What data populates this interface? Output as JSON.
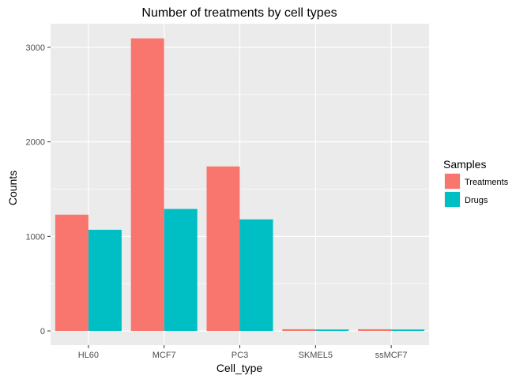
{
  "chart_data": {
    "type": "bar",
    "title": "Number of treatments by cell types",
    "xlabel": "Cell_type",
    "ylabel": "Counts",
    "categories": [
      "HL60",
      "MCF7",
      "PC3",
      "SKMEL5",
      "ssMCF7"
    ],
    "series": [
      {
        "name": "Treatments",
        "color": "#F8766D",
        "values": [
          1230,
          3095,
          1740,
          18,
          18
        ]
      },
      {
        "name": "Drugs",
        "color": "#00BFC4",
        "values": [
          1070,
          1290,
          1180,
          15,
          15
        ]
      }
    ],
    "ylim": [
      -150,
      3250
    ],
    "yticks": [
      0,
      1000,
      2000,
      3000
    ],
    "ytick_labels": [
      "0",
      "1000",
      "2000",
      "3000"
    ],
    "grid": true,
    "panel_background": "#EBEBEB",
    "legend": {
      "title": "Samples",
      "placement": "right"
    }
  }
}
